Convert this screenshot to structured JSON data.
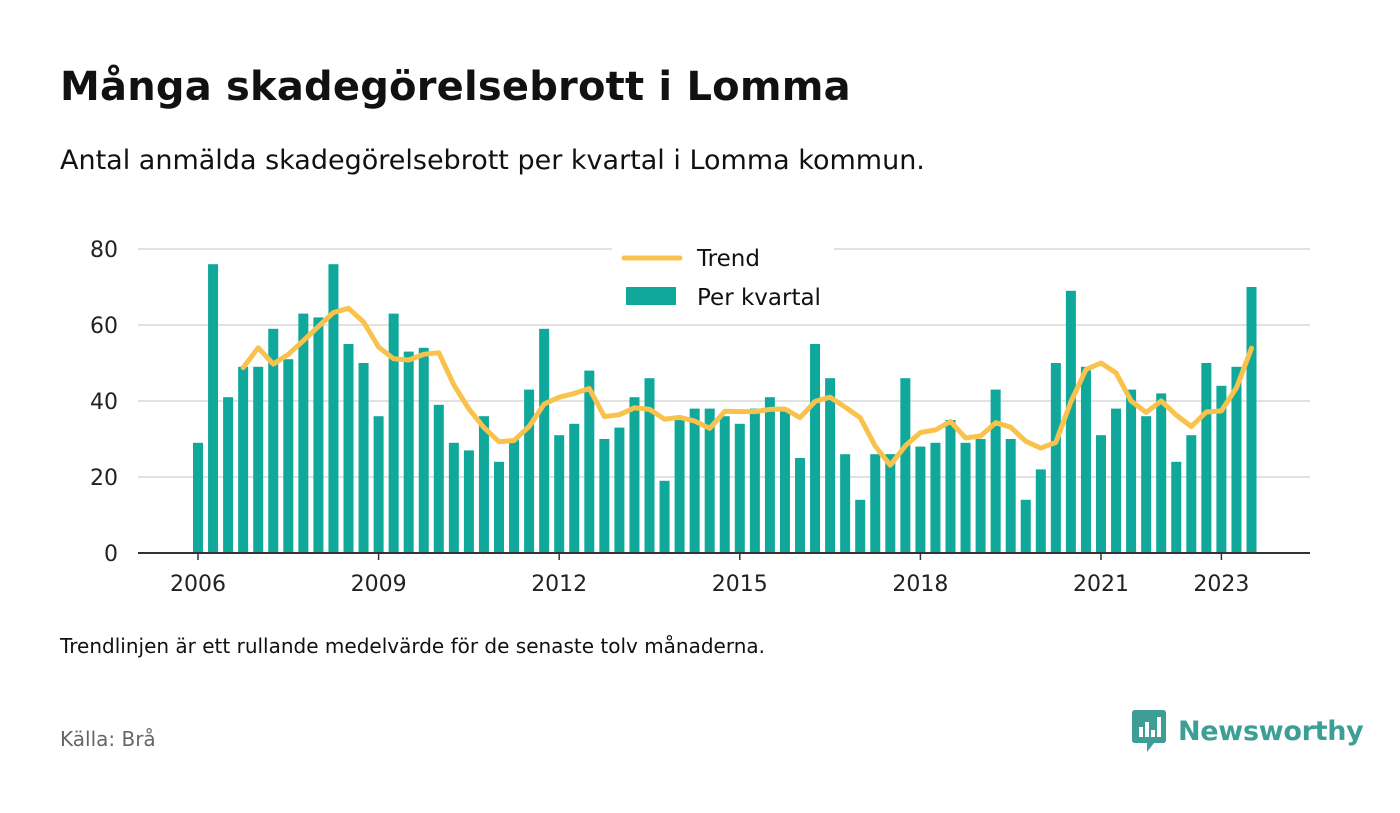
{
  "title": "Många skadegörelsebrott i Lomma",
  "subtitle": "Antal anmälda skadegörelsebrott per kvartal i Lomma kommun.",
  "note": "Trendlinjen är ett rullande medelvärde för de senaste tolv månaderna.",
  "source": "Källa: Brå",
  "brand": "Newsworthy",
  "colors": {
    "bars": "#0fa89b",
    "trend": "#f9c24d",
    "grid": "#d9d9d9",
    "axis": "#333333",
    "brand": "#3d9e95"
  },
  "chart_data": {
    "type": "bar",
    "x_start": "2006 Q1",
    "x_ticks": [
      "2006",
      "2009",
      "2012",
      "2015",
      "2018",
      "2021",
      "2023"
    ],
    "y_ticks": [
      "0",
      "20",
      "40",
      "60",
      "80"
    ],
    "ylim": [
      0,
      80
    ],
    "grid": true,
    "legend_position": "top-center",
    "series": [
      {
        "name": "Per kvartal",
        "type": "bar",
        "values": [
          29,
          76,
          41,
          49,
          49,
          59,
          51,
          63,
          62,
          76,
          55,
          50,
          36,
          63,
          53,
          54,
          39,
          29,
          27,
          36,
          24,
          30,
          43,
          59,
          31,
          34,
          48,
          30,
          33,
          41,
          46,
          19,
          35,
          38,
          38,
          36,
          34,
          38,
          41,
          38,
          25,
          55,
          46,
          26,
          14,
          26,
          26,
          46,
          28,
          29,
          35,
          29,
          30,
          43,
          30,
          14,
          22,
          50,
          69,
          49,
          31,
          38,
          43,
          36,
          42,
          24,
          31,
          50,
          44,
          49,
          70
        ]
      },
      {
        "name": "Trend",
        "type": "line",
        "values": [
          null,
          null,
          null,
          48.8,
          54,
          49.7,
          52.3,
          55.9,
          59.6,
          63.3,
          64.4,
          60.8,
          54.2,
          51.1,
          50.8,
          52.3,
          52.7,
          44.2,
          37.9,
          33,
          29.3,
          29.6,
          33.3,
          39.2,
          41,
          42,
          43.3,
          35.9,
          36.4,
          38.2,
          37.8,
          35.2,
          35.7,
          34.7,
          32.8,
          37.3,
          37.2,
          37.2,
          37.8,
          37.9,
          35.6,
          39.9,
          41,
          38.4,
          35.6,
          28.1,
          23.1,
          28.2,
          31.7,
          32.4,
          34.6,
          30.3,
          30.8,
          34.3,
          33.1,
          29.4,
          27.6,
          29.1,
          39.8,
          48.3,
          50,
          47.4,
          40,
          37,
          40,
          36.3,
          33.3,
          37.1,
          37.4,
          43.5,
          53.9
        ]
      }
    ]
  }
}
